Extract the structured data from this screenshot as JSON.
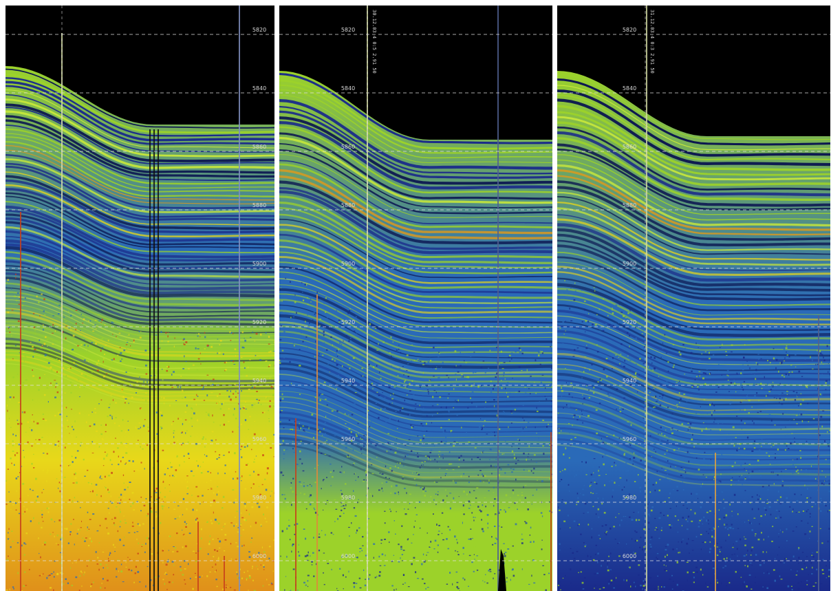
{
  "panels": [
    {
      "id": "left",
      "depth_labels": [
        "5820",
        "5840",
        "5860",
        "5880",
        "5900",
        "5920",
        "5940",
        "5960",
        "5980",
        "6000"
      ],
      "time_label": ""
    },
    {
      "id": "middle",
      "depth_labels": [
        "5820",
        "5840",
        "5860",
        "5880",
        "5900",
        "5920",
        "5940",
        "5960",
        "5980",
        "6000"
      ],
      "time_label": "30.12.03  4  0:5  2.91  50"
    },
    {
      "id": "right",
      "depth_labels": [
        "5820",
        "5840",
        "5860",
        "5880",
        "5900",
        "5920",
        "5940",
        "5960",
        "5980",
        "6000"
      ],
      "time_label": "31.12.03  4  0:3  2.91  50"
    }
  ],
  "colors": {
    "background": "#000000",
    "low_reflectivity": "#1a2a8a",
    "mid_reflectivity": "#2a6ab8",
    "high_reflectivity": "#9cd22a",
    "peak_reflectivity": "#e8d81a",
    "strong_return": "#c8401a",
    "grid": "#e0e0e0"
  },
  "icons": {
    "depth_grid": "dashed-line-icon"
  }
}
